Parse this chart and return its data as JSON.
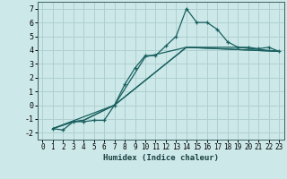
{
  "xlabel": "Humidex (Indice chaleur)",
  "bg_color": "#cce8e8",
  "grid_color": "#b0d0d0",
  "line_color": "#1a6060",
  "xlim": [
    -0.5,
    23.5
  ],
  "ylim": [
    -2.5,
    7.5
  ],
  "xticks": [
    0,
    1,
    2,
    3,
    4,
    5,
    6,
    7,
    8,
    9,
    10,
    11,
    12,
    13,
    14,
    15,
    16,
    17,
    18,
    19,
    20,
    21,
    22,
    23
  ],
  "yticks": [
    -2,
    -1,
    0,
    1,
    2,
    3,
    4,
    5,
    6,
    7
  ],
  "lines": [
    {
      "x": [
        1,
        2,
        3,
        4,
        5,
        6,
        7,
        8,
        9,
        10,
        11,
        12,
        13,
        14,
        15,
        16,
        17,
        18,
        19,
        20,
        21,
        22,
        23
      ],
      "y": [
        -1.7,
        -1.8,
        -1.2,
        -1.2,
        -1.1,
        -1.1,
        0.0,
        1.5,
        2.7,
        3.6,
        3.6,
        4.3,
        5.0,
        7.0,
        6.0,
        6.0,
        5.5,
        4.6,
        4.2,
        4.2,
        4.1,
        4.2,
        3.9
      ],
      "marker": true
    },
    {
      "x": [
        1,
        3,
        4,
        7,
        10,
        14,
        19,
        23
      ],
      "y": [
        -1.7,
        -1.2,
        -1.1,
        0.0,
        3.5,
        4.2,
        4.2,
        3.9
      ],
      "marker": false
    },
    {
      "x": [
        1,
        3,
        4,
        7,
        14,
        23
      ],
      "y": [
        -1.7,
        -1.2,
        -1.1,
        0.0,
        4.2,
        3.9
      ],
      "marker": false
    },
    {
      "x": [
        1,
        7,
        14,
        23
      ],
      "y": [
        -1.7,
        0.0,
        4.2,
        3.9
      ],
      "marker": false
    }
  ]
}
